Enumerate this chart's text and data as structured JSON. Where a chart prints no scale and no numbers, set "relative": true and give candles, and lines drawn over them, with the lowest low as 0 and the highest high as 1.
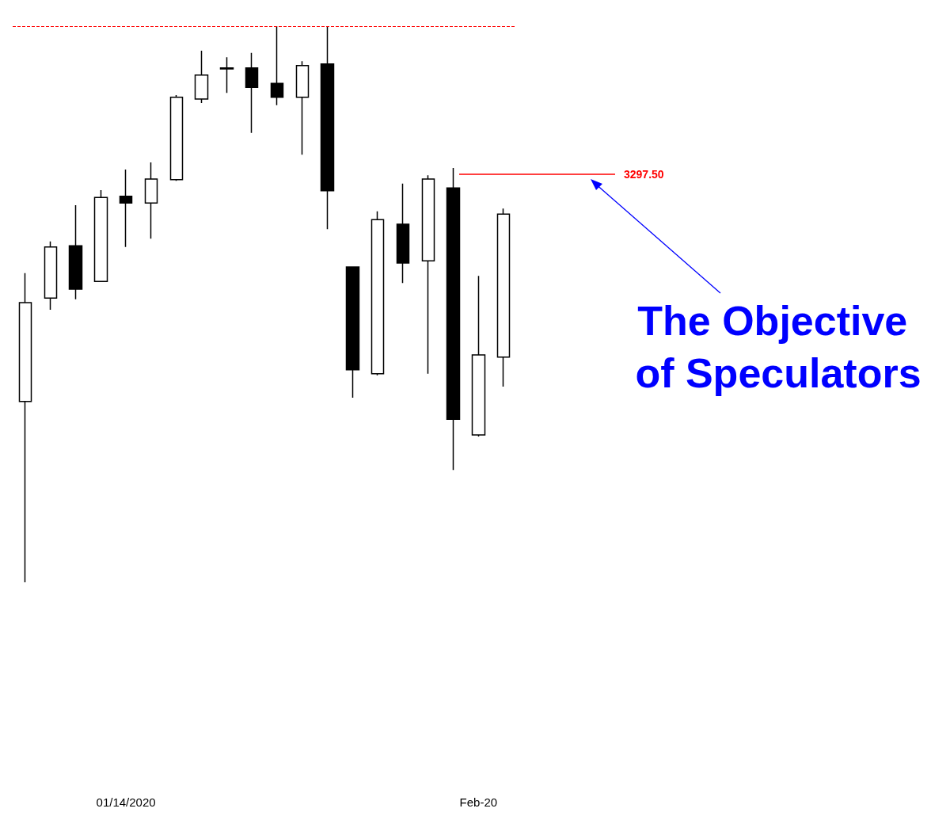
{
  "chart_data": {
    "type": "candlestick",
    "relative": true,
    "categories": [
      null,
      null,
      null,
      null,
      "01/14/2020",
      null,
      null,
      null,
      null,
      null,
      null,
      null,
      null,
      null,
      null,
      null,
      null,
      null,
      "Feb-20",
      null
    ],
    "ohlc": [
      [
        0.325,
        0.556,
        0,
        0.503
      ],
      [
        0.511,
        0.613,
        0.49,
        0.603
      ],
      [
        0.605,
        0.678,
        0.509,
        0.527
      ],
      [
        0.541,
        0.705,
        0.54,
        0.692
      ],
      [
        0.694,
        0.742,
        0.603,
        0.682
      ],
      [
        0.682,
        0.755,
        0.618,
        0.725
      ],
      [
        0.724,
        0.876,
        0.722,
        0.872
      ],
      [
        0.869,
        0.956,
        0.862,
        0.912
      ],
      [
        0.923,
        0.944,
        0.88,
        0.925
      ],
      [
        0.925,
        0.952,
        0.808,
        0.89
      ],
      [
        0.897,
        1,
        0.858,
        0.872
      ],
      [
        0.872,
        0.937,
        0.769,
        0.929
      ],
      [
        0.932,
        1,
        0.635,
        0.704
      ],
      [
        0.567,
        0.567,
        0.332,
        0.382
      ],
      [
        0.375,
        0.667,
        0.372,
        0.652
      ],
      [
        0.644,
        0.717,
        0.538,
        0.574
      ],
      [
        0.578,
        0.732,
        0.375,
        0.725
      ],
      [
        0.709,
        0.745,
        0.202,
        0.293
      ],
      [
        0.265,
        0.551,
        0.262,
        0.409
      ],
      [
        0.405,
        0.672,
        0.352,
        0.662
      ]
    ],
    "ref_lines": [
      {
        "axis": "y",
        "value": 1,
        "color": "#ff0000",
        "line_style": "dashed"
      }
    ],
    "annotations": [
      "3297.50",
      "The Objective of Speculators"
    ]
  }
}
